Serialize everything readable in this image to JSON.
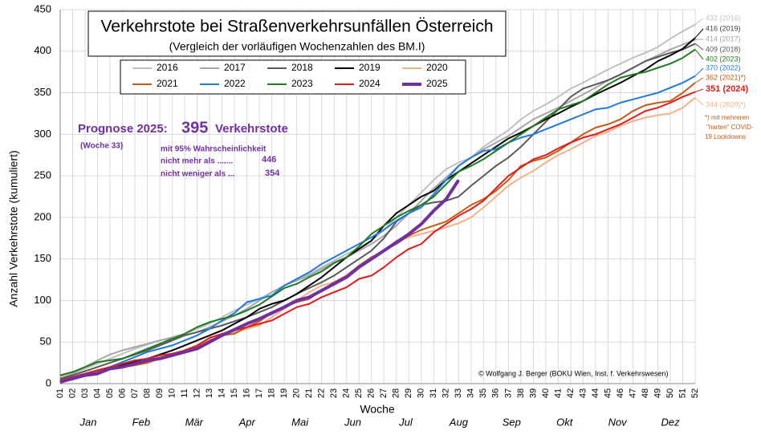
{
  "chart_data": {
    "type": "line",
    "title": "Verkehrstote bei Straßenverkehrsunfällen Österreich",
    "subtitle": "(Vergleich der vorläufigen Wochenzahlen des BM.I)",
    "y_label": "Anzahl Verkehrstote (kumuliert)",
    "x_label": "Woche",
    "categories": [
      "01",
      "02",
      "03",
      "04",
      "05",
      "06",
      "07",
      "08",
      "09",
      "10",
      "11",
      "12",
      "13",
      "14",
      "15",
      "16",
      "17",
      "18",
      "19",
      "20",
      "21",
      "22",
      "23",
      "24",
      "25",
      "26",
      "27",
      "28",
      "29",
      "30",
      "31",
      "32",
      "33",
      "34",
      "35",
      "36",
      "37",
      "38",
      "39",
      "40",
      "41",
      "42",
      "43",
      "44",
      "45",
      "46",
      "47",
      "48",
      "49",
      "50",
      "51",
      "52"
    ],
    "months": [
      "Jan",
      "Feb",
      "Mär",
      "Apr",
      "Mai",
      "Jun",
      "Jul",
      "Aug",
      "Sep",
      "Okt",
      "Nov",
      "Dez"
    ],
    "ylim": [
      0,
      450
    ],
    "yticks": [
      0,
      50,
      100,
      150,
      200,
      250,
      300,
      350,
      400,
      450
    ],
    "grid": true,
    "series": [
      {
        "name": "2016",
        "color": "#c0c0c0",
        "end_label": "432 (2016)",
        "values": [
          8,
          12,
          18,
          24,
          30,
          36,
          42,
          47,
          52,
          56,
          60,
          66,
          72,
          80,
          88,
          95,
          102,
          110,
          118,
          125,
          132,
          140,
          148,
          156,
          163,
          172,
          185,
          200,
          215,
          230,
          245,
          258,
          266,
          272,
          285,
          295,
          305,
          318,
          328,
          336,
          345,
          355,
          362,
          370,
          378,
          385,
          392,
          398,
          405,
          415,
          424,
          432
        ]
      },
      {
        "name": "2017",
        "color": "#a6a6a6",
        "end_label": "414 (2017)",
        "values": [
          5,
          12,
          20,
          28,
          35,
          40,
          44,
          48,
          52,
          55,
          58,
          62,
          68,
          75,
          82,
          90,
          100,
          110,
          118,
          124,
          130,
          138,
          146,
          152,
          160,
          168,
          178,
          190,
          205,
          220,
          235,
          248,
          262,
          272,
          282,
          290,
          298,
          308,
          318,
          325,
          332,
          340,
          348,
          356,
          365,
          372,
          380,
          388,
          395,
          402,
          408,
          414
        ]
      },
      {
        "name": "2018",
        "color": "#595959",
        "end_label": "409 (2018)",
        "values": [
          6,
          10,
          15,
          20,
          25,
          30,
          35,
          40,
          46,
          52,
          58,
          62,
          66,
          70,
          75,
          80,
          86,
          92,
          100,
          108,
          115,
          122,
          130,
          140,
          150,
          160,
          175,
          195,
          205,
          215,
          218,
          220,
          225,
          238,
          250,
          262,
          272,
          285,
          300,
          315,
          330,
          345,
          355,
          360,
          365,
          372,
          380,
          388,
          393,
          398,
          402,
          409
        ]
      },
      {
        "name": "2019",
        "color": "#000000",
        "end_label": "416 (2019)",
        "values": [
          3,
          6,
          10,
          14,
          18,
          22,
          26,
          30,
          35,
          40,
          46,
          52,
          58,
          64,
          72,
          80,
          90,
          96,
          100,
          108,
          118,
          128,
          140,
          152,
          162,
          172,
          190,
          205,
          215,
          225,
          232,
          245,
          255,
          265,
          275,
          285,
          295,
          302,
          310,
          318,
          325,
          333,
          340,
          348,
          355,
          362,
          370,
          378,
          388,
          395,
          403,
          416
        ]
      },
      {
        "name": "2020",
        "color": "#f4b183",
        "end_label": "344 (2020)*)",
        "values": [
          2,
          5,
          9,
          13,
          17,
          20,
          24,
          28,
          32,
          35,
          40,
          45,
          52,
          58,
          62,
          66,
          70,
          80,
          90,
          100,
          110,
          118,
          122,
          130,
          140,
          150,
          160,
          172,
          176,
          180,
          184,
          188,
          193,
          200,
          212,
          225,
          238,
          248,
          256,
          266,
          275,
          282,
          290,
          298,
          303,
          310,
          316,
          320,
          323,
          325,
          332,
          344
        ]
      },
      {
        "name": "2021",
        "color": "#c55a11",
        "end_label": "362 (2021)*)",
        "values": [
          3,
          7,
          10,
          14,
          18,
          20,
          22,
          25,
          30,
          34,
          38,
          44,
          52,
          58,
          60,
          68,
          75,
          85,
          92,
          98,
          102,
          112,
          122,
          130,
          142,
          152,
          160,
          168,
          178,
          185,
          190,
          195,
          205,
          215,
          222,
          232,
          245,
          262,
          268,
          272,
          280,
          290,
          300,
          308,
          312,
          318,
          328,
          335,
          338,
          340,
          350,
          362
        ]
      },
      {
        "name": "2022",
        "color": "#1f7ae0",
        "end_label": "370 (2022)",
        "values": [
          4,
          8,
          12,
          16,
          20,
          26,
          32,
          38,
          42,
          46,
          52,
          58,
          66,
          76,
          85,
          98,
          102,
          106,
          118,
          126,
          134,
          144,
          152,
          160,
          168,
          176,
          185,
          196,
          205,
          212,
          228,
          245,
          262,
          272,
          280,
          282,
          290,
          296,
          300,
          306,
          312,
          318,
          324,
          330,
          332,
          338,
          342,
          346,
          350,
          356,
          362,
          370
        ]
      },
      {
        "name": "2023",
        "color": "#1e7b1e",
        "end_label": "402 (2023)",
        "values": [
          10,
          14,
          20,
          26,
          28,
          30,
          36,
          42,
          48,
          54,
          60,
          68,
          74,
          78,
          82,
          88,
          95,
          105,
          115,
          120,
          128,
          135,
          145,
          152,
          165,
          180,
          190,
          200,
          208,
          215,
          225,
          240,
          255,
          262,
          270,
          280,
          290,
          300,
          310,
          320,
          330,
          335,
          340,
          350,
          360,
          368,
          372,
          375,
          380,
          385,
          392,
          402
        ]
      },
      {
        "name": "2024",
        "color": "#e21a1a",
        "end_label": "351 (2024)",
        "values": [
          4,
          8,
          12,
          16,
          20,
          24,
          28,
          30,
          34,
          36,
          40,
          46,
          55,
          60,
          64,
          68,
          72,
          76,
          84,
          92,
          96,
          104,
          110,
          116,
          126,
          130,
          140,
          152,
          162,
          168,
          182,
          192,
          202,
          210,
          220,
          235,
          250,
          260,
          270,
          275,
          283,
          290,
          296,
          300,
          306,
          312,
          320,
          328,
          332,
          338,
          345,
          351
        ]
      },
      {
        "name": "2025",
        "color": "#7030a0",
        "values": [
          2,
          6,
          10,
          12,
          18,
          20,
          24,
          28,
          30,
          34,
          38,
          42,
          50,
          58,
          65,
          72,
          78,
          85,
          92,
          100,
          104,
          112,
          120,
          128,
          140,
          150,
          160,
          170,
          180,
          192,
          208,
          222,
          245,
          null,
          null,
          null,
          null,
          null,
          null,
          null,
          null,
          null,
          null,
          null,
          null,
          null,
          null,
          null,
          null,
          null,
          null,
          null
        ]
      }
    ],
    "prognose": {
      "title": "Prognose 2025:",
      "value": 395,
      "unit": "Verkehrstote",
      "week": "(Woche  33)",
      "confidence": "mit 95% Wahrscheinlichkeit",
      "max_text": "nicht mehr als .......",
      "max": 446,
      "min_text": "nicht weniger als ...",
      "min": 354
    },
    "footnote": [
      "*) mit mehreren",
      "\"harten\" COVID-",
      "19 Lockdowns"
    ],
    "credit": "© Wolfgang J. Berger (BOKU Wien, Inst. f. Verkehrswesen)"
  }
}
